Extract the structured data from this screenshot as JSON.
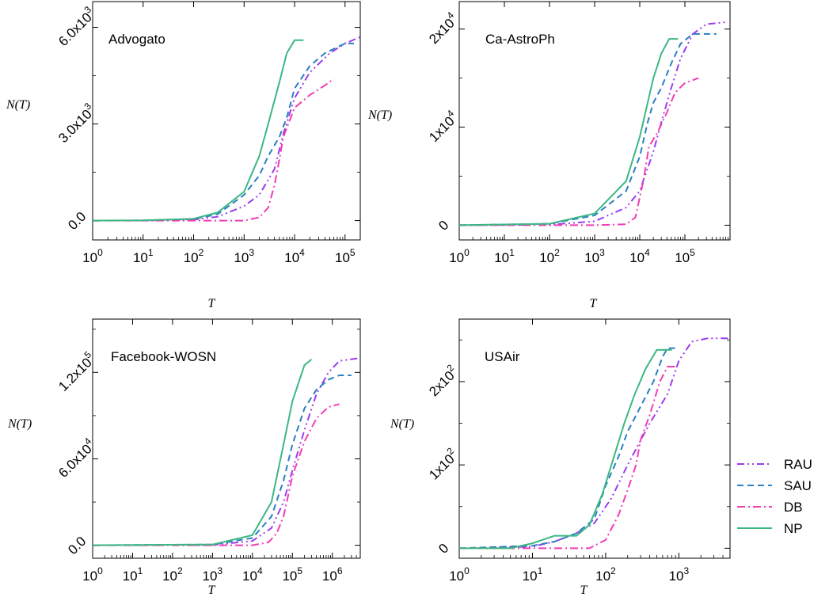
{
  "chart_data": [
    {
      "type": "line",
      "title": "Advogato",
      "xlabel": "T",
      "ylabel": "N(T)",
      "xscale": "log",
      "xlim": [
        1,
        200000
      ],
      "ylim": [
        -600,
        6800
      ],
      "xticks": [
        {
          "value": 1,
          "base": "10",
          "exp": "0"
        },
        {
          "value": 10,
          "base": "10",
          "exp": "1"
        },
        {
          "value": 100,
          "base": "10",
          "exp": "2"
        },
        {
          "value": 1000,
          "base": "10",
          "exp": "3"
        },
        {
          "value": 10000,
          "base": "10",
          "exp": "4"
        },
        {
          "value": 100000,
          "base": "10",
          "exp": "5"
        }
      ],
      "yticks": [
        {
          "value": 0,
          "mant": "0.0",
          "exp": ""
        },
        {
          "value": 3000,
          "mant": "3.0x10",
          "exp": "3"
        },
        {
          "value": 6000,
          "mant": "6.0x10",
          "exp": "3"
        }
      ],
      "series": [
        {
          "name": "RAU",
          "points": [
            [
              1,
              0
            ],
            [
              10,
              5
            ],
            [
              100,
              30
            ],
            [
              300,
              120
            ],
            [
              1000,
              450
            ],
            [
              2000,
              800
            ],
            [
              4000,
              1600
            ],
            [
              6000,
              2700
            ],
            [
              10000,
              3800
            ],
            [
              20000,
              4600
            ],
            [
              50000,
              5200
            ],
            [
              100000,
              5500
            ],
            [
              200000,
              5700
            ]
          ]
        },
        {
          "name": "SAU",
          "points": [
            [
              1,
              0
            ],
            [
              10,
              5
            ],
            [
              100,
              45
            ],
            [
              300,
              200
            ],
            [
              1000,
              800
            ],
            [
              2000,
              1400
            ],
            [
              3000,
              2000
            ],
            [
              5000,
              2600
            ],
            [
              7000,
              3200
            ],
            [
              10000,
              4100
            ],
            [
              20000,
              4800
            ],
            [
              40000,
              5200
            ],
            [
              100000,
              5500
            ],
            [
              150000,
              5500
            ]
          ]
        },
        {
          "name": "DB",
          "points": [
            [
              1,
              0
            ],
            [
              100,
              0
            ],
            [
              1000,
              0
            ],
            [
              2000,
              100
            ],
            [
              3000,
              400
            ],
            [
              4000,
              1100
            ],
            [
              5000,
              1900
            ],
            [
              6000,
              2600
            ],
            [
              10000,
              3500
            ],
            [
              20000,
              3900
            ],
            [
              40000,
              4200
            ],
            [
              60000,
              4400
            ]
          ]
        },
        {
          "name": "NP",
          "points": [
            [
              1,
              0
            ],
            [
              10,
              10
            ],
            [
              100,
              60
            ],
            [
              300,
              250
            ],
            [
              1000,
              900
            ],
            [
              2000,
              2000
            ],
            [
              3000,
              3000
            ],
            [
              5000,
              4300
            ],
            [
              7000,
              5200
            ],
            [
              10000,
              5600
            ],
            [
              15000,
              5600
            ]
          ]
        }
      ]
    },
    {
      "type": "line",
      "title": "Ca-AstroPh",
      "xlabel": "T",
      "ylabel": "N(T)",
      "xscale": "log",
      "xlim": [
        1,
        1000000
      ],
      "ylim": [
        -1500,
        22800
      ],
      "xticks": [
        {
          "value": 1,
          "base": "10",
          "exp": "0"
        },
        {
          "value": 10,
          "base": "10",
          "exp": "1"
        },
        {
          "value": 100,
          "base": "10",
          "exp": "2"
        },
        {
          "value": 1000,
          "base": "10",
          "exp": "3"
        },
        {
          "value": 10000,
          "base": "10",
          "exp": "4"
        },
        {
          "value": 100000,
          "base": "10",
          "exp": "5"
        }
      ],
      "yticks": [
        {
          "value": 0,
          "mant": "0",
          "exp": ""
        },
        {
          "value": 10000,
          "mant": "1x10",
          "exp": "4"
        },
        {
          "value": 20000,
          "mant": "2x10",
          "exp": "4"
        }
      ],
      "series": [
        {
          "name": "RAU",
          "points": [
            [
              1,
              0
            ],
            [
              100,
              50
            ],
            [
              1000,
              400
            ],
            [
              5000,
              1800
            ],
            [
              10000,
              3500
            ],
            [
              20000,
              7500
            ],
            [
              30000,
              10500
            ],
            [
              50000,
              14000
            ],
            [
              80000,
              17000
            ],
            [
              150000,
              19500
            ],
            [
              300000,
              20500
            ],
            [
              800000,
              20700
            ]
          ]
        },
        {
          "name": "SAU",
          "points": [
            [
              1,
              0
            ],
            [
              100,
              150
            ],
            [
              1000,
              1000
            ],
            [
              5000,
              3500
            ],
            [
              10000,
              7000
            ],
            [
              15000,
              10500
            ],
            [
              20000,
              12500
            ],
            [
              30000,
              14000
            ],
            [
              50000,
              16500
            ],
            [
              80000,
              18500
            ],
            [
              150000,
              19500
            ],
            [
              500000,
              19500
            ]
          ]
        },
        {
          "name": "DB",
          "points": [
            [
              1,
              0
            ],
            [
              1000,
              0
            ],
            [
              5000,
              100
            ],
            [
              8000,
              800
            ],
            [
              12000,
              4500
            ],
            [
              16000,
              8000
            ],
            [
              25000,
              9500
            ],
            [
              40000,
              11500
            ],
            [
              60000,
              13500
            ],
            [
              100000,
              14500
            ],
            [
              200000,
              15000
            ]
          ]
        },
        {
          "name": "NP",
          "points": [
            [
              1,
              0
            ],
            [
              100,
              150
            ],
            [
              1000,
              1200
            ],
            [
              5000,
              4500
            ],
            [
              10000,
              9000
            ],
            [
              20000,
              15000
            ],
            [
              30000,
              17500
            ],
            [
              45000,
              19000
            ],
            [
              70000,
              19000
            ]
          ]
        }
      ]
    },
    {
      "type": "line",
      "title": "Facebook-WOSN",
      "xlabel": "T",
      "ylabel": "N(T)",
      "xscale": "log",
      "xlim": [
        1,
        5000000
      ],
      "ylim": [
        -9000,
        157000
      ],
      "xticks": [
        {
          "value": 1,
          "base": "10",
          "exp": "0"
        },
        {
          "value": 10,
          "base": "10",
          "exp": "1"
        },
        {
          "value": 100,
          "base": "10",
          "exp": "2"
        },
        {
          "value": 1000,
          "base": "10",
          "exp": "3"
        },
        {
          "value": 10000,
          "base": "10",
          "exp": "4"
        },
        {
          "value": 100000,
          "base": "10",
          "exp": "5"
        },
        {
          "value": 1000000,
          "base": "10",
          "exp": "6"
        }
      ],
      "yticks": [
        {
          "value": 0,
          "mant": "0.0",
          "exp": ""
        },
        {
          "value": 60000,
          "mant": "6.0x10",
          "exp": "4"
        },
        {
          "value": 120000,
          "mant": "1.2x10",
          "exp": "5"
        }
      ],
      "series": [
        {
          "name": "RAU",
          "points": [
            [
              1,
              0
            ],
            [
              1000,
              200
            ],
            [
              10000,
              3000
            ],
            [
              30000,
              12000
            ],
            [
              60000,
              30000
            ],
            [
              100000,
              52000
            ],
            [
              200000,
              80000
            ],
            [
              400000,
              105000
            ],
            [
              800000,
              120000
            ],
            [
              1500000,
              128000
            ],
            [
              5000000,
              130000
            ]
          ]
        },
        {
          "name": "SAU",
          "points": [
            [
              1,
              0
            ],
            [
              1000,
              500
            ],
            [
              10000,
              5000
            ],
            [
              30000,
              20000
            ],
            [
              60000,
              45000
            ],
            [
              100000,
              70000
            ],
            [
              200000,
              95000
            ],
            [
              400000,
              108000
            ],
            [
              800000,
              115000
            ],
            [
              1500000,
              118000
            ],
            [
              3000000,
              118000
            ]
          ]
        },
        {
          "name": "DB",
          "points": [
            [
              1,
              0
            ],
            [
              10000,
              0
            ],
            [
              25000,
              2000
            ],
            [
              40000,
              8000
            ],
            [
              60000,
              20000
            ],
            [
              100000,
              48000
            ],
            [
              200000,
              72000
            ],
            [
              400000,
              88000
            ],
            [
              800000,
              96000
            ],
            [
              1500000,
              98000
            ]
          ]
        },
        {
          "name": "NP",
          "points": [
            [
              1,
              0
            ],
            [
              1000,
              500
            ],
            [
              10000,
              7000
            ],
            [
              30000,
              30000
            ],
            [
              60000,
              70000
            ],
            [
              100000,
              100000
            ],
            [
              200000,
              125000
            ],
            [
              300000,
              129000
            ]
          ]
        }
      ]
    },
    {
      "type": "line",
      "title": "USAir",
      "xlabel": "T",
      "ylabel": "N(T)",
      "xscale": "log",
      "xlim": [
        1,
        5000
      ],
      "ylim": [
        -12,
        275
      ],
      "xticks": [
        {
          "value": 1,
          "base": "10",
          "exp": "0"
        },
        {
          "value": 10,
          "base": "10",
          "exp": "1"
        },
        {
          "value": 100,
          "base": "10",
          "exp": "2"
        },
        {
          "value": 1000,
          "base": "10",
          "exp": "3"
        }
      ],
      "yticks": [
        {
          "value": 0,
          "mant": "0",
          "exp": ""
        },
        {
          "value": 100,
          "mant": "1x10",
          "exp": "2"
        },
        {
          "value": 200,
          "mant": "2x10",
          "exp": "2"
        }
      ],
      "series": [
        {
          "name": "RAU",
          "points": [
            [
              1,
              0
            ],
            [
              10,
              2
            ],
            [
              20,
              8
            ],
            [
              40,
              18
            ],
            [
              70,
              30
            ],
            [
              120,
              60
            ],
            [
              200,
              100
            ],
            [
              400,
              150
            ],
            [
              700,
              185
            ],
            [
              1000,
              225
            ],
            [
              1500,
              248
            ],
            [
              2500,
              252
            ],
            [
              5000,
              252
            ]
          ]
        },
        {
          "name": "SAU",
          "points": [
            [
              1,
              0
            ],
            [
              10,
              3
            ],
            [
              20,
              8
            ],
            [
              40,
              18
            ],
            [
              70,
              35
            ],
            [
              100,
              75
            ],
            [
              150,
              110
            ],
            [
              200,
              140
            ],
            [
              300,
              170
            ],
            [
              450,
              200
            ],
            [
              600,
              230
            ],
            [
              700,
              240
            ],
            [
              900,
              240
            ]
          ]
        },
        {
          "name": "DB",
          "points": [
            [
              1,
              0
            ],
            [
              60,
              0
            ],
            [
              100,
              10
            ],
            [
              150,
              40
            ],
            [
              200,
              70
            ],
            [
              260,
              100
            ],
            [
              300,
              130
            ],
            [
              400,
              160
            ],
            [
              550,
              200
            ],
            [
              700,
              218
            ],
            [
              900,
              218
            ]
          ]
        },
        {
          "name": "NP",
          "points": [
            [
              1,
              0
            ],
            [
              5,
              0
            ],
            [
              10,
              6
            ],
            [
              20,
              15
            ],
            [
              40,
              15
            ],
            [
              60,
              28
            ],
            [
              90,
              65
            ],
            [
              130,
              110
            ],
            [
              180,
              150
            ],
            [
              250,
              185
            ],
            [
              350,
              215
            ],
            [
              500,
              238
            ],
            [
              800,
              238
            ]
          ]
        }
      ]
    }
  ],
  "legend": {
    "position": "bottom-right",
    "entries": [
      "RAU",
      "SAU",
      "DB",
      "NP"
    ]
  },
  "series_colors": {
    "RAU": "#9b3cf0",
    "SAU": "#2a7fc0",
    "DB": "#f33cb4",
    "NP": "#3cb882"
  },
  "series_dash": {
    "RAU": "9,4,2,4,2,4",
    "SAU": "8,5",
    "DB": "10,4,2,4",
    "NP": ""
  }
}
